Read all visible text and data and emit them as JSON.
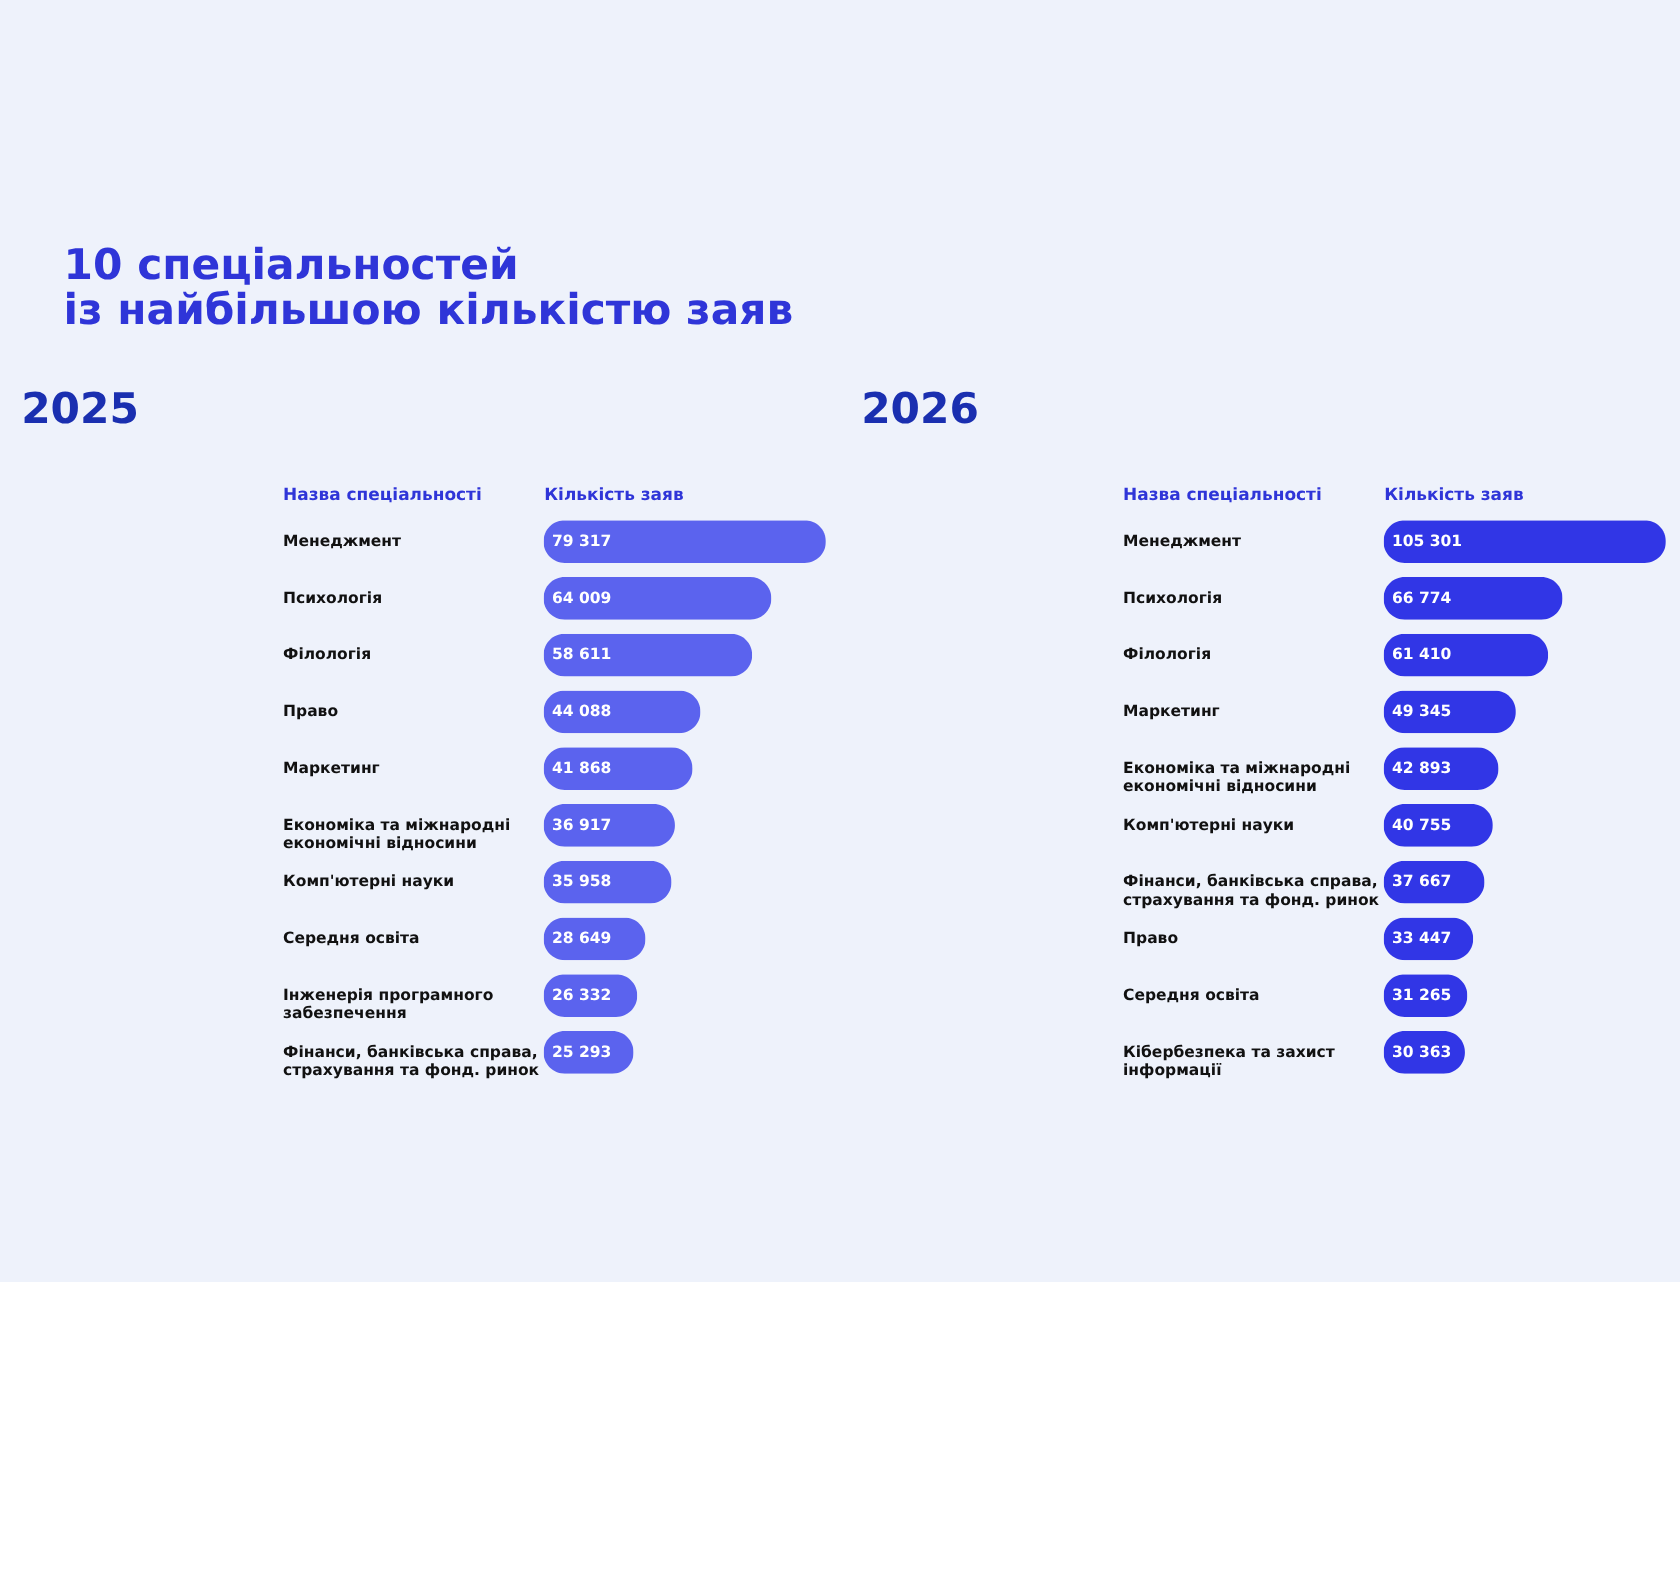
{
  "chart_data": [
    {
      "type": "other",
      "title": "10 спеціальностей\nіз найбільшою кількістю заяв"
    },
    {
      "type": "bar",
      "orientation": "horizontal",
      "title": "2025",
      "ylabel": "Назва спеціальності",
      "xlabel": "Кількість заяв",
      "tick_labels": "y",
      "data_labels": true,
      "color": "#5b63ee",
      "categories": [
        "Менеджмент",
        "Психологія",
        "Філологія",
        "Право",
        "Маркетинг",
        "Економіка та міжнародні економічні відносини",
        "Комп'ютерні науки",
        "Середня освіта",
        "Інженерія програмного забезпечення",
        "Фінанси, банківська справа, страхування та фонд. ринок"
      ],
      "values": [
        79317,
        64009,
        58611,
        44088,
        41868,
        36917,
        35958,
        28649,
        26332,
        25293
      ]
    },
    {
      "type": "bar",
      "orientation": "horizontal",
      "title": "2026",
      "ylabel": "Назва спеціальності",
      "xlabel": "Кількість заяв",
      "tick_labels": "y",
      "data_labels": true,
      "color": "#3136e6",
      "categories": [
        "Менеджмент",
        "Психологія",
        "Філологія",
        "Маркетинг",
        "Економіка та міжнародні економічні відносини",
        "Комп'ютерні науки",
        "Фінанси, банківська справа, страхування та фонд. ринок",
        "Право",
        "Середня освіта",
        "Кібербезпека та захист інформації"
      ],
      "values": [
        105301,
        66774,
        61410,
        49345,
        42893,
        40755,
        37667,
        33447,
        31265,
        30363
      ]
    }
  ]
}
